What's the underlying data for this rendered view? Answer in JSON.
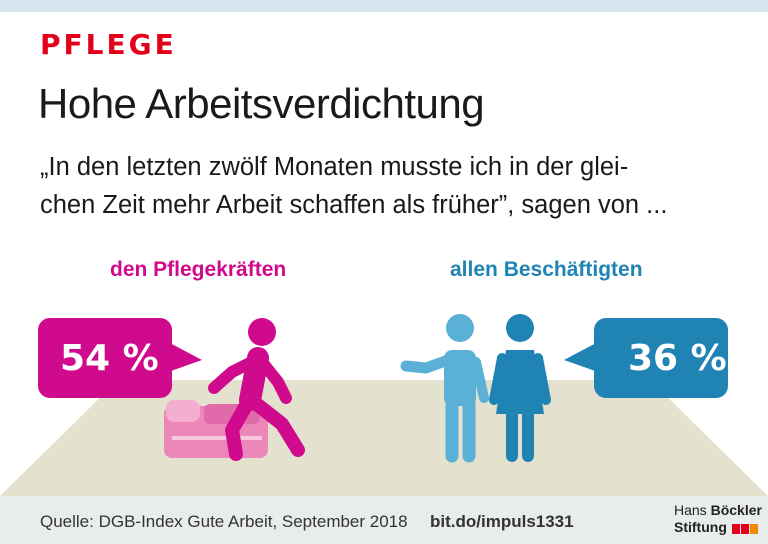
{
  "kicker": "PFLEGE",
  "title": "Hohe Arbeitsverdichtung",
  "quote_lines": [
    "„In den letzten zwölf Monaten musste ich in der glei-",
    "chen Zeit mehr Arbeit schaffen als früher”, sagen von ..."
  ],
  "groups": {
    "left": {
      "label": "den Pflegekräften",
      "value": "54 %",
      "color": "#d00a8c"
    },
    "right": {
      "label": "allen Beschäftigten",
      "value": "36 %",
      "color": "#1f84b4"
    }
  },
  "footer": {
    "source": "Quelle: DGB-Index Gute Arbeit, September 2018",
    "link": "bit.do/impuls1331",
    "logo_line1_a": "Hans ",
    "logo_line1_b": "Böckler",
    "logo_line2": "Stiftung"
  },
  "colors": {
    "accent_red": "#e3001b",
    "magenta": "#d00a8c",
    "blue": "#1f84b4",
    "light_blue": "#5ab0d6",
    "floor": "#e4e1cf"
  },
  "icons": [
    "walking-nurse-icon",
    "patient-bed-icon",
    "man-icon",
    "woman-icon"
  ]
}
